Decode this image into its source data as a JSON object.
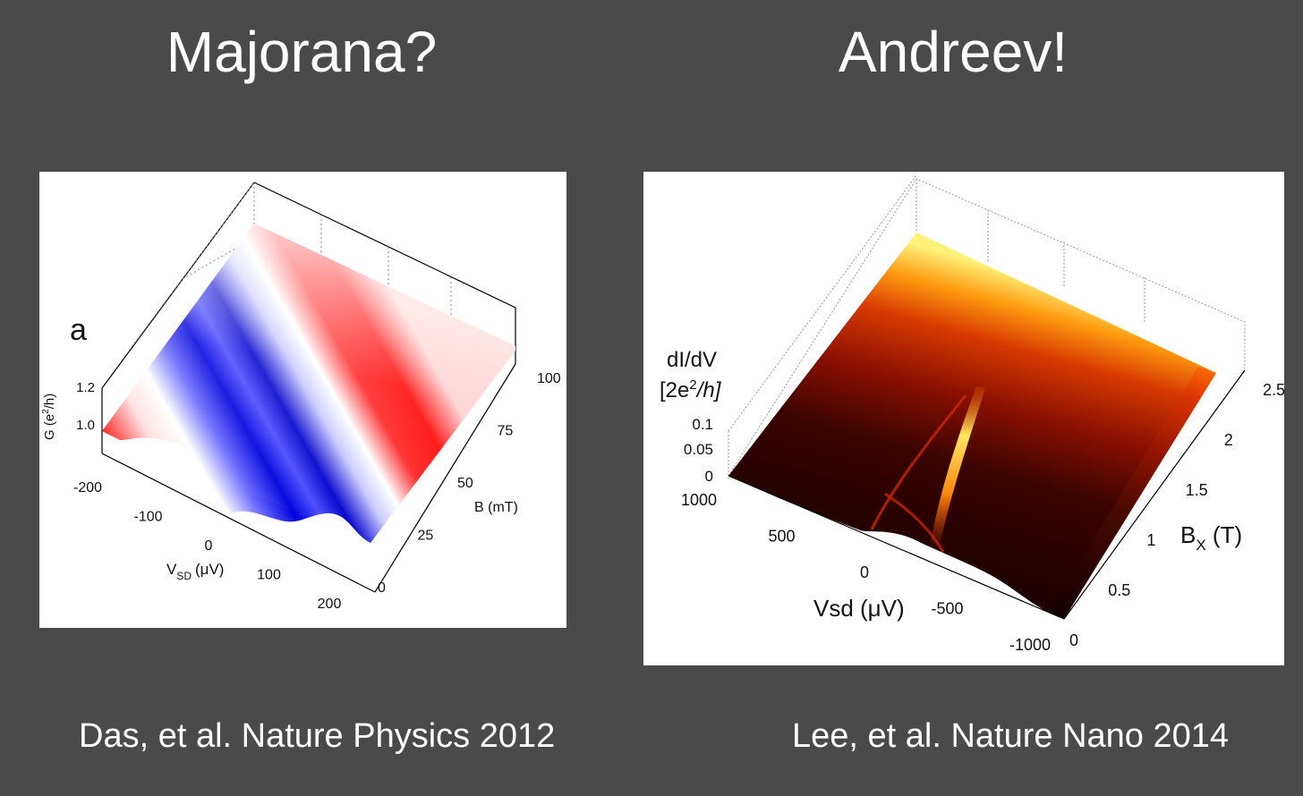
{
  "slide": {
    "left_title": "Majorana?",
    "right_title": "Andreev!",
    "left_caption": "Das, et al. Nature Physics 2012",
    "right_caption": "Lee, et al. Nature Nano 2014"
  },
  "chart_data": [
    {
      "type": "surface3d",
      "panel_label": "a",
      "xlabel": "V",
      "xlabel_sub": "SD",
      "xlabel_unit": "(μV)",
      "ylabel": "B (mT)",
      "zlabel": "G (e",
      "zlabel_sup": "2",
      "zlabel_end": "/h)",
      "x_ticks": [
        "-200",
        "-100",
        "0",
        "100",
        "200"
      ],
      "y_ticks": [
        "0",
        "25",
        "50",
        "75",
        "100"
      ],
      "z_ticks": [
        "1.0",
        "1.2"
      ],
      "xlim": [
        -200,
        200
      ],
      "ylim": [
        0,
        100
      ],
      "colors": {
        "high": "#ff0000",
        "mid": "#ffffff",
        "low": "#0000dd"
      }
    },
    {
      "type": "surface3d",
      "zlabel_line1": "dI/dV",
      "zlabel_line2_pre": "[2e",
      "zlabel_line2_sup": "2",
      "zlabel_line2_post": "/h]",
      "xlabel": "Vsd (μV)",
      "ylabel": "B",
      "ylabel_sub": "X",
      "ylabel_unit": " (T)",
      "x_ticks": [
        "1000",
        "500",
        "0",
        "-500",
        "-1000"
      ],
      "y_ticks": [
        "0",
        "0.5",
        "1",
        "1.5",
        "2",
        "2.5"
      ],
      "z_ticks": [
        "0",
        "0.05",
        "0.1"
      ],
      "xlim": [
        1000,
        -1000
      ],
      "ylim": [
        0,
        2.5
      ],
      "colors": {
        "low": "#1a0000",
        "mid": "#c81e00",
        "high": "#fff06a"
      }
    }
  ]
}
